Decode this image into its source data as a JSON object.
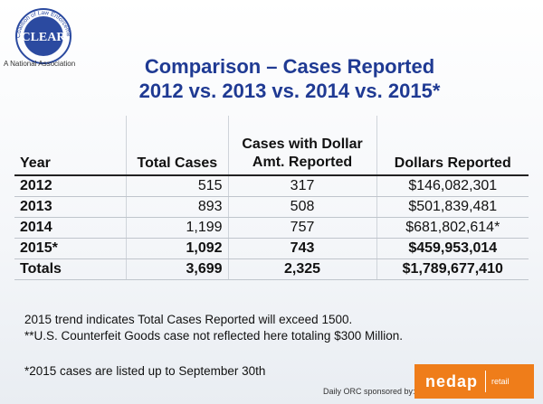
{
  "logo": {
    "name": "CLEAR",
    "arc_text": "Coalition of Law Enforcement and Retail",
    "tagline": "A National Association"
  },
  "title": {
    "line1": "Comparison – Cases Reported",
    "line2": "2012 vs. 2013 vs. 2014 vs. 2015*"
  },
  "table": {
    "headers": {
      "year": "Year",
      "total": "Total Cases",
      "cases_line1": "Cases with Dollar",
      "cases_line2": "Amt. Reported",
      "dollars": "Dollars Reported"
    },
    "rows": [
      {
        "year": "2012",
        "total": "515",
        "cases": "317",
        "dollars": "$146,082,301"
      },
      {
        "year": "2013",
        "total": "893",
        "cases": "508",
        "dollars": "$501,839,481"
      },
      {
        "year": "2014",
        "total": "1,199",
        "cases": "757",
        "dollars": "$681,802,614*"
      },
      {
        "year": "2015*",
        "total": "1,092",
        "cases": "743",
        "dollars": "$459,953,014"
      },
      {
        "year": "Totals",
        "total": "3,699",
        "cases": "2,325",
        "dollars": "$1,789,677,410"
      }
    ]
  },
  "notes": {
    "trend": "2015 trend indicates Total Cases Reported will exceed 1500.",
    "counterfeit": "**U.S. Counterfeit Goods case not reflected here totaling $300 Million.",
    "footnote": "*2015 cases are listed up to September 30th"
  },
  "sponsor": {
    "text": "Daily ORC sponsored by:",
    "logo_name": "nedap",
    "logo_sub": "retail",
    "logo_color": "#ef7d1a"
  }
}
